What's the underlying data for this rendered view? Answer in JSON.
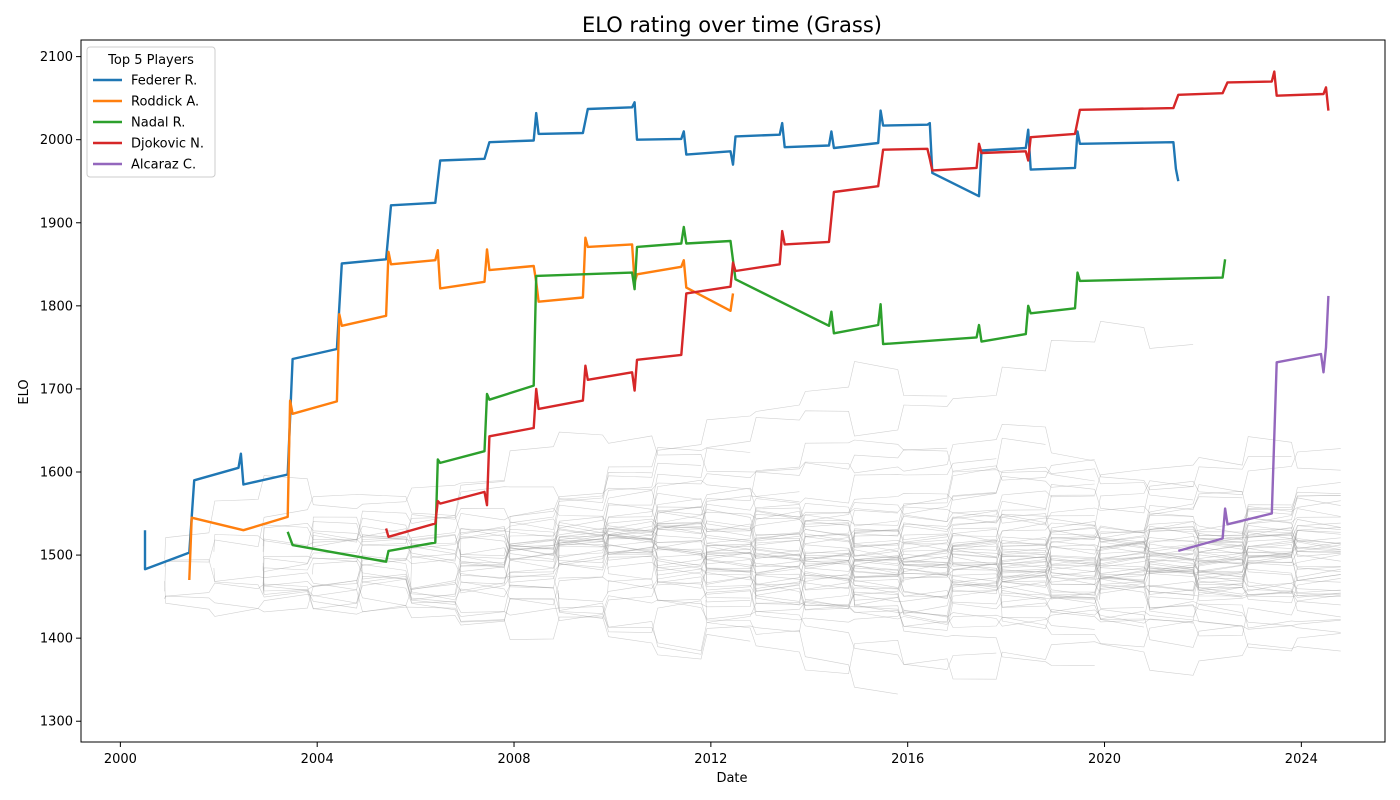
{
  "chart_data": {
    "type": "line",
    "title": "ELO rating over time (Grass)",
    "xlabel": "Date",
    "ylabel": "ELO",
    "xlim": [
      1999.2,
      2025.7
    ],
    "ylim": [
      1275,
      2120
    ],
    "x_ticks": [
      2000,
      2004,
      2008,
      2012,
      2016,
      2020,
      2024
    ],
    "y_ticks": [
      1300,
      1400,
      1500,
      1600,
      1700,
      1800,
      1900,
      2000,
      2100
    ],
    "grid": false,
    "legend": {
      "title": "Top 5 Players",
      "placement": "top-left",
      "entries": [
        "Federer R.",
        "Roddick A.",
        "Nadal R.",
        "Djokovic N.",
        "Alcaraz C."
      ]
    },
    "series": [
      {
        "name": "Federer R.",
        "color": "#1f77b4",
        "points": [
          [
            2000.5,
            1530
          ],
          [
            2000.5,
            1483
          ],
          [
            2001.4,
            1503
          ],
          [
            2001.5,
            1590
          ],
          [
            2002.4,
            1605
          ],
          [
            2002.45,
            1622
          ],
          [
            2002.5,
            1585
          ],
          [
            2003.4,
            1597
          ],
          [
            2003.5,
            1736
          ],
          [
            2004.4,
            1748
          ],
          [
            2004.5,
            1851
          ],
          [
            2005.4,
            1856
          ],
          [
            2005.5,
            1921
          ],
          [
            2006.4,
            1924
          ],
          [
            2006.5,
            1975
          ],
          [
            2007.4,
            1977
          ],
          [
            2007.5,
            1997
          ],
          [
            2008.4,
            1999
          ],
          [
            2008.45,
            2032
          ],
          [
            2008.5,
            2007
          ],
          [
            2009.4,
            2008
          ],
          [
            2009.5,
            2037
          ],
          [
            2010.4,
            2039
          ],
          [
            2010.45,
            2045
          ],
          [
            2010.5,
            2000
          ],
          [
            2011.4,
            2001
          ],
          [
            2011.45,
            2010
          ],
          [
            2011.5,
            1982
          ],
          [
            2012.4,
            1986
          ],
          [
            2012.45,
            1970
          ],
          [
            2012.5,
            2004
          ],
          [
            2013.4,
            2006
          ],
          [
            2013.45,
            2020
          ],
          [
            2013.5,
            1991
          ],
          [
            2014.4,
            1993
          ],
          [
            2014.45,
            2010
          ],
          [
            2014.5,
            1990
          ],
          [
            2015.4,
            1996
          ],
          [
            2015.45,
            2035
          ],
          [
            2015.5,
            2017
          ],
          [
            2016.4,
            2018
          ],
          [
            2016.45,
            2020
          ],
          [
            2016.5,
            1960
          ],
          [
            2017.45,
            1932
          ],
          [
            2017.5,
            1987
          ],
          [
            2018.4,
            1990
          ],
          [
            2018.45,
            2012
          ],
          [
            2018.5,
            1964
          ],
          [
            2019.4,
            1966
          ],
          [
            2019.45,
            2010
          ],
          [
            2019.5,
            1995
          ],
          [
            2021.4,
            1997
          ],
          [
            2021.45,
            1965
          ],
          [
            2021.5,
            1950
          ]
        ]
      },
      {
        "name": "Roddick A.",
        "color": "#ff7f0e",
        "points": [
          [
            2001.4,
            1470
          ],
          [
            2001.45,
            1545
          ],
          [
            2002.5,
            1530
          ],
          [
            2003.4,
            1546
          ],
          [
            2003.45,
            1686
          ],
          [
            2003.5,
            1670
          ],
          [
            2004.4,
            1685
          ],
          [
            2004.45,
            1790
          ],
          [
            2004.5,
            1776
          ],
          [
            2005.4,
            1788
          ],
          [
            2005.45,
            1865
          ],
          [
            2005.5,
            1850
          ],
          [
            2006.4,
            1855
          ],
          [
            2006.45,
            1867
          ],
          [
            2006.5,
            1821
          ],
          [
            2007.4,
            1829
          ],
          [
            2007.45,
            1868
          ],
          [
            2007.5,
            1843
          ],
          [
            2008.4,
            1848
          ],
          [
            2008.45,
            1829
          ],
          [
            2008.5,
            1805
          ],
          [
            2009.4,
            1810
          ],
          [
            2009.45,
            1882
          ],
          [
            2009.5,
            1871
          ],
          [
            2010.4,
            1874
          ],
          [
            2010.45,
            1828
          ],
          [
            2010.5,
            1838
          ],
          [
            2011.4,
            1847
          ],
          [
            2011.45,
            1855
          ],
          [
            2011.5,
            1822
          ],
          [
            2012.4,
            1794
          ],
          [
            2012.45,
            1815
          ]
        ]
      },
      {
        "name": "Nadal R.",
        "color": "#2ca02c",
        "points": [
          [
            2003.4,
            1528
          ],
          [
            2003.5,
            1512
          ],
          [
            2005.4,
            1492
          ],
          [
            2005.45,
            1505
          ],
          [
            2006.4,
            1515
          ],
          [
            2006.45,
            1615
          ],
          [
            2006.5,
            1611
          ],
          [
            2007.4,
            1625
          ],
          [
            2007.45,
            1694
          ],
          [
            2007.5,
            1687
          ],
          [
            2008.4,
            1704
          ],
          [
            2008.45,
            1836
          ],
          [
            2010.4,
            1840
          ],
          [
            2010.45,
            1820
          ],
          [
            2010.5,
            1871
          ],
          [
            2011.4,
            1875
          ],
          [
            2011.45,
            1895
          ],
          [
            2011.5,
            1875
          ],
          [
            2012.4,
            1878
          ],
          [
            2012.45,
            1855
          ],
          [
            2012.5,
            1832
          ],
          [
            2014.4,
            1776
          ],
          [
            2014.45,
            1793
          ],
          [
            2014.5,
            1767
          ],
          [
            2015.4,
            1777
          ],
          [
            2015.45,
            1802
          ],
          [
            2015.5,
            1754
          ],
          [
            2017.4,
            1762
          ],
          [
            2017.45,
            1777
          ],
          [
            2017.5,
            1757
          ],
          [
            2018.4,
            1766
          ],
          [
            2018.45,
            1800
          ],
          [
            2018.5,
            1791
          ],
          [
            2019.4,
            1797
          ],
          [
            2019.45,
            1840
          ],
          [
            2019.5,
            1830
          ],
          [
            2022.4,
            1834
          ],
          [
            2022.45,
            1856
          ]
        ]
      },
      {
        "name": "Djokovic N.",
        "color": "#d62728",
        "points": [
          [
            2005.4,
            1532
          ],
          [
            2005.45,
            1522
          ],
          [
            2006.4,
            1538
          ],
          [
            2006.45,
            1565
          ],
          [
            2006.5,
            1562
          ],
          [
            2007.4,
            1576
          ],
          [
            2007.45,
            1560
          ],
          [
            2007.5,
            1643
          ],
          [
            2008.4,
            1653
          ],
          [
            2008.45,
            1700
          ],
          [
            2008.5,
            1676
          ],
          [
            2009.4,
            1686
          ],
          [
            2009.45,
            1728
          ],
          [
            2009.5,
            1711
          ],
          [
            2010.4,
            1720
          ],
          [
            2010.45,
            1698
          ],
          [
            2010.5,
            1735
          ],
          [
            2011.4,
            1741
          ],
          [
            2011.5,
            1815
          ],
          [
            2012.4,
            1823
          ],
          [
            2012.45,
            1852
          ],
          [
            2012.5,
            1842
          ],
          [
            2013.4,
            1850
          ],
          [
            2013.45,
            1890
          ],
          [
            2013.5,
            1874
          ],
          [
            2014.4,
            1877
          ],
          [
            2014.5,
            1937
          ],
          [
            2015.4,
            1944
          ],
          [
            2015.5,
            1988
          ],
          [
            2016.4,
            1989
          ],
          [
            2016.45,
            1977
          ],
          [
            2016.5,
            1963
          ],
          [
            2017.4,
            1966
          ],
          [
            2017.45,
            1995
          ],
          [
            2017.5,
            1984
          ],
          [
            2018.4,
            1986
          ],
          [
            2018.45,
            1975
          ],
          [
            2018.5,
            2003
          ],
          [
            2019.4,
            2007
          ],
          [
            2019.5,
            2036
          ],
          [
            2021.4,
            2038
          ],
          [
            2021.5,
            2054
          ],
          [
            2022.4,
            2056
          ],
          [
            2022.5,
            2069
          ],
          [
            2023.4,
            2070
          ],
          [
            2023.45,
            2082
          ],
          [
            2023.5,
            2053
          ],
          [
            2024.45,
            2055
          ],
          [
            2024.5,
            2063
          ],
          [
            2024.55,
            2035
          ]
        ]
      },
      {
        "name": "Alcaraz C.",
        "color": "#9467bd",
        "points": [
          [
            2021.5,
            1505
          ],
          [
            2022.4,
            1520
          ],
          [
            2022.45,
            1556
          ],
          [
            2022.5,
            1537
          ],
          [
            2023.4,
            1550
          ],
          [
            2023.5,
            1732
          ],
          [
            2024.4,
            1742
          ],
          [
            2024.45,
            1720
          ],
          [
            2024.5,
            1750
          ],
          [
            2024.55,
            1812
          ]
        ]
      }
    ]
  }
}
